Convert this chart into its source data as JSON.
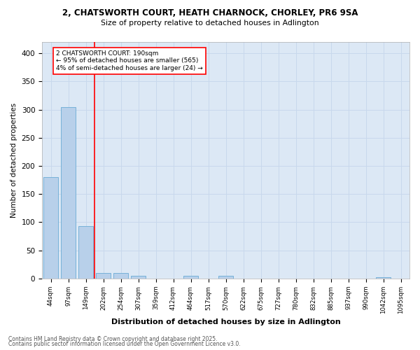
{
  "title1": "2, CHATSWORTH COURT, HEATH CHARNOCK, CHORLEY, PR6 9SA",
  "title2": "Size of property relative to detached houses in Adlington",
  "xlabel": "Distribution of detached houses by size in Adlington",
  "ylabel": "Number of detached properties",
  "categories": [
    "44sqm",
    "97sqm",
    "149sqm",
    "202sqm",
    "254sqm",
    "307sqm",
    "359sqm",
    "412sqm",
    "464sqm",
    "517sqm",
    "570sqm",
    "622sqm",
    "675sqm",
    "727sqm",
    "780sqm",
    "832sqm",
    "885sqm",
    "937sqm",
    "990sqm",
    "1042sqm",
    "1095sqm"
  ],
  "values": [
    180,
    305,
    93,
    10,
    10,
    5,
    0,
    0,
    5,
    0,
    5,
    0,
    0,
    0,
    0,
    0,
    0,
    0,
    0,
    2,
    0
  ],
  "bar_color": "#b8d0ea",
  "bar_edge_color": "#6aaad4",
  "vline_color": "red",
  "annotation_text": "2 CHATSWORTH COURT: 190sqm\n← 95% of detached houses are smaller (565)\n4% of semi-detached houses are larger (24) →",
  "annotation_box_color": "white",
  "annotation_box_edge": "red",
  "ylim": [
    0,
    420
  ],
  "yticks": [
    0,
    50,
    100,
    150,
    200,
    250,
    300,
    350,
    400
  ],
  "grid_color": "#c8d8ec",
  "background_color": "#dce8f5",
  "footer1": "Contains HM Land Registry data © Crown copyright and database right 2025.",
  "footer2": "Contains public sector information licensed under the Open Government Licence v3.0."
}
